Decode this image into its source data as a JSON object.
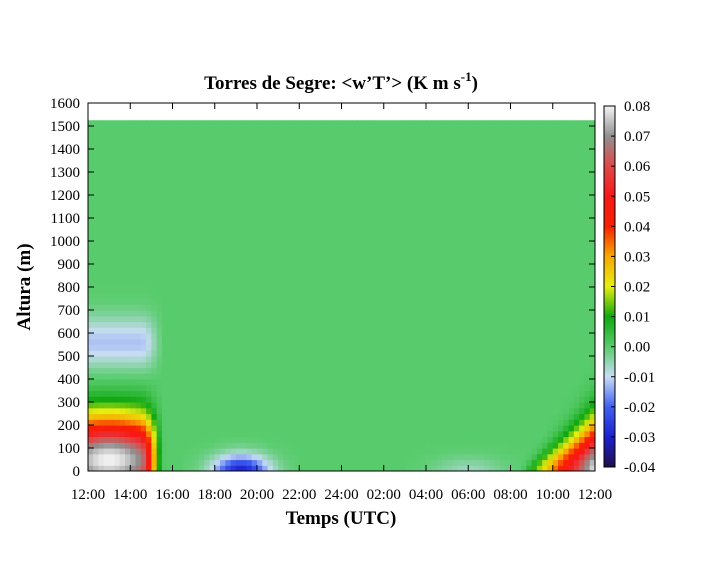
{
  "chart_data": {
    "type": "heatmap",
    "title": {
      "text": "Torres de Segre: <w’T’> (K m s",
      "sup": "-1",
      "tail": ")"
    },
    "xlabel": "Temps (UTC)",
    "ylabel": "Altura (m)",
    "x_tick_labels": [
      "12:00",
      "14:00",
      "16:00",
      "18:00",
      "20:00",
      "22:00",
      "24:00",
      "02:00",
      "04:00",
      "06:00",
      "08:00",
      "10:00",
      "12:00"
    ],
    "xlim_hours": [
      0,
      24
    ],
    "y_ticks": [
      0,
      100,
      200,
      300,
      400,
      500,
      600,
      700,
      800,
      900,
      1000,
      1100,
      1200,
      1300,
      1400,
      1500,
      1600
    ],
    "ylim": [
      0,
      1600
    ],
    "data_top": 1525,
    "colorbar": {
      "ticks": [
        "0.08",
        "0.07",
        "0.06",
        "0.05",
        "0.04",
        "0.03",
        "0.02",
        "0.01",
        "0.00",
        "-0.01",
        "-0.02",
        "-0.03",
        "-0.04"
      ],
      "range": [
        -0.04,
        0.08
      ],
      "stops": [
        {
          "v": -0.04,
          "color": "#20104a"
        },
        {
          "v": -0.03,
          "color": "#1c20d0"
        },
        {
          "v": -0.02,
          "color": "#4060f0"
        },
        {
          "v": -0.01,
          "color": "#c8dcf4"
        },
        {
          "v": 0.0,
          "color": "#58cc6c"
        },
        {
          "v": 0.01,
          "color": "#10a810"
        },
        {
          "v": 0.02,
          "color": "#e6ee10"
        },
        {
          "v": 0.03,
          "color": "#f8a800"
        },
        {
          "v": 0.04,
          "color": "#f82000"
        },
        {
          "v": 0.05,
          "color": "#f81818"
        },
        {
          "v": 0.06,
          "color": "#e04848"
        },
        {
          "v": 0.07,
          "color": "#909090"
        },
        {
          "v": 0.08,
          "color": "#f4f4f4"
        }
      ]
    },
    "features": [
      {
        "name": "daytime-convective-plume",
        "t_start": 0.0,
        "t_end": 3.7,
        "peak_t": 1.0,
        "peak_value": 0.08,
        "peak_height": 50,
        "top_height": 330
      },
      {
        "name": "nocturnal-negative-flux",
        "t_start": 5.5,
        "t_end": 9.0,
        "min_value": -0.03,
        "top_height": 70
      },
      {
        "name": "morning-convective-growth",
        "t_start": 20.5,
        "t_end": 24.0,
        "peak_value": 0.08,
        "top_height": 260
      }
    ]
  }
}
